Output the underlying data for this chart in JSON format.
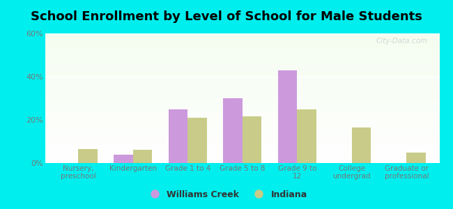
{
  "title": "School Enrollment by Level of School for Male Students",
  "categories": [
    "Nursery,\npreschool",
    "Kindergarten",
    "Grade 1 to 4",
    "Grade 5 to 8",
    "Grade 9 to\n12",
    "College\nundergrad",
    "Graduate or\nprofessional"
  ],
  "williams_creek": [
    0,
    4,
    25,
    30,
    43,
    0,
    0
  ],
  "indiana": [
    6.5,
    6,
    21,
    21.5,
    25,
    16.5,
    5
  ],
  "williams_creek_color": "#cc99dd",
  "indiana_color": "#c8cc88",
  "background_color": "#00eeee",
  "ylim": [
    0,
    60
  ],
  "yticks": [
    0,
    20,
    40,
    60
  ],
  "ytick_labels": [
    "0%",
    "20%",
    "40%",
    "60%"
  ],
  "bar_width": 0.35,
  "legend_labels": [
    "Williams Creek",
    "Indiana"
  ],
  "watermark": "City-Data.com",
  "title_fontsize": 13,
  "tick_fontsize": 7.5,
  "legend_fontsize": 9
}
